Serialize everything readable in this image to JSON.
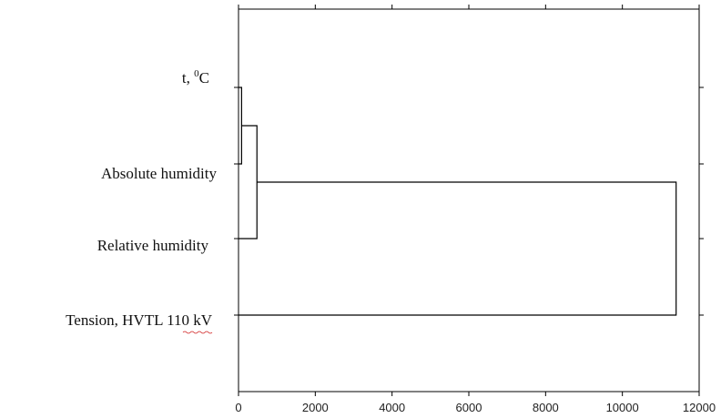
{
  "chart_data": {
    "type": "dendrogram",
    "orientation": "horizontal",
    "title": "",
    "xlabel": "",
    "ylabel": "",
    "xlim": [
      0,
      12000
    ],
    "xticks": [
      0,
      2000,
      4000,
      6000,
      8000,
      10000,
      12000
    ],
    "tick_labels": [
      "0",
      "2000",
      "4000",
      "6000",
      "8000",
      "10000",
      "12000"
    ],
    "leaves": [
      {
        "id": "t",
        "label_main": "t, ",
        "label_sup": "0",
        "label_unit": "C"
      },
      {
        "id": "abs",
        "label": "Absolute humidity"
      },
      {
        "id": "rel",
        "label": "Relative humidity"
      },
      {
        "id": "ten",
        "label": "Tension, HVTL 110 kV"
      }
    ],
    "merges": [
      {
        "a": "t",
        "b": "abs",
        "distance": 80
      },
      {
        "a": [
          "t",
          "abs"
        ],
        "b": "rel",
        "distance": 480
      },
      {
        "a": [
          "t",
          "abs",
          "rel"
        ],
        "b": "ten",
        "distance": 11400
      }
    ],
    "grid": false,
    "legend": "none"
  }
}
